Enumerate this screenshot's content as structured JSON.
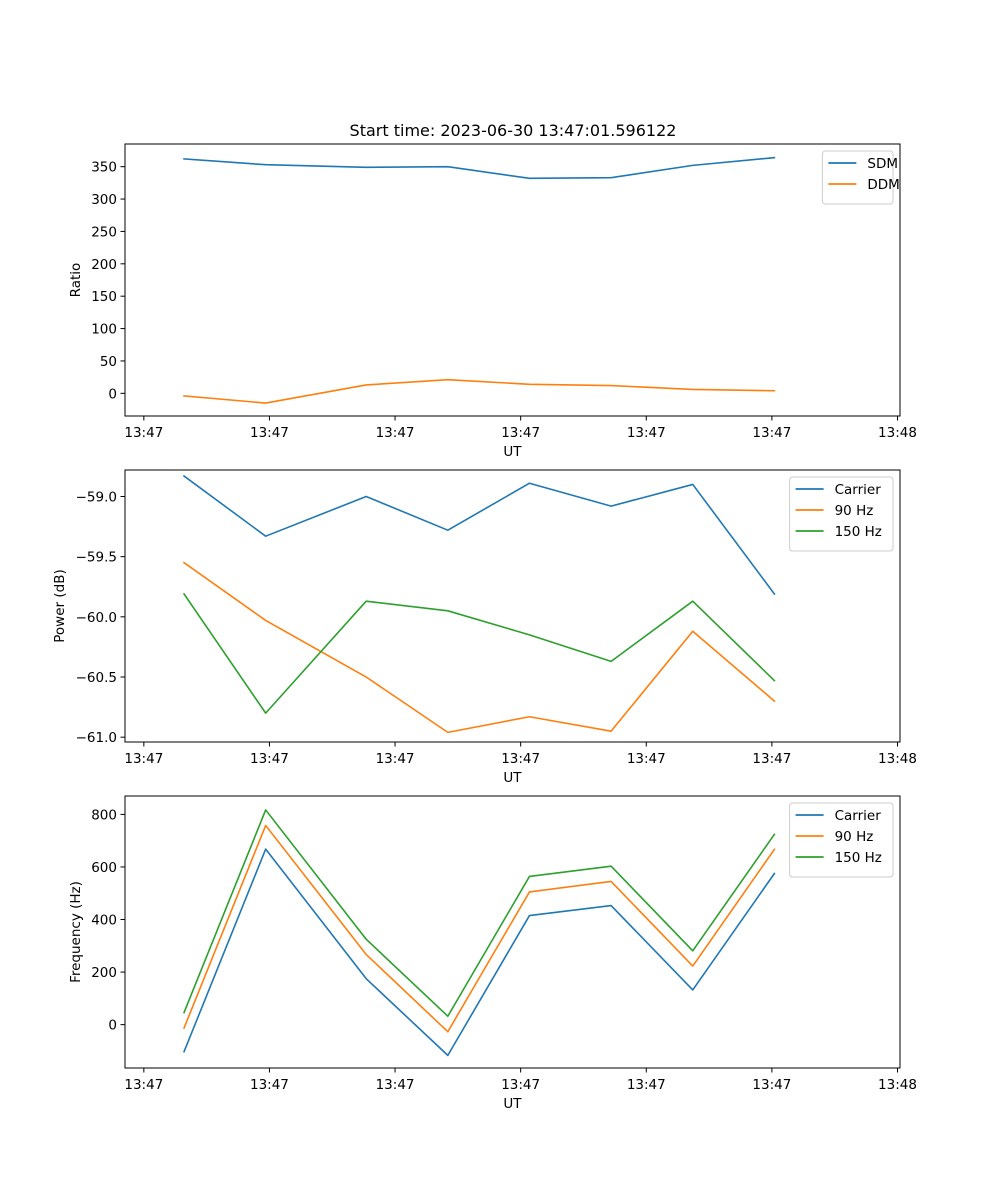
{
  "title": "Start time: 2023-06-30 13:47:01.596122",
  "chart_data": [
    {
      "type": "line",
      "xlabel": "UT",
      "ylabel": "Ratio",
      "x_tick_labels": [
        "13:47",
        "13:47",
        "13:47",
        "13:47",
        "13:47",
        "13:47",
        "13:48"
      ],
      "x_tick_positions": [
        0,
        1,
        2,
        3,
        4,
        5,
        6
      ],
      "xlim": [
        -0.15,
        6.02
      ],
      "x": [
        0.32,
        0.97,
        1.77,
        2.42,
        3.07,
        3.72,
        4.37,
        5.02
      ],
      "y_ticks": [
        0,
        50,
        100,
        150,
        200,
        250,
        300,
        350
      ],
      "ylim": [
        -35,
        385
      ],
      "legend_position": "upper right",
      "series": [
        {
          "name": "SDM",
          "color": "#1f77b4",
          "values": [
            362,
            353,
            349,
            350,
            332,
            333,
            352,
            364
          ]
        },
        {
          "name": "DDM",
          "color": "#ff7f0e",
          "values": [
            -4,
            -15,
            13,
            21,
            14,
            12,
            6,
            4
          ]
        }
      ]
    },
    {
      "type": "line",
      "xlabel": "UT",
      "ylabel": "Power (dB)",
      "x_tick_labels": [
        "13:47",
        "13:47",
        "13:47",
        "13:47",
        "13:47",
        "13:47",
        "13:48"
      ],
      "x_tick_positions": [
        0,
        1,
        2,
        3,
        4,
        5,
        6
      ],
      "xlim": [
        -0.15,
        6.02
      ],
      "x": [
        0.32,
        0.97,
        1.77,
        2.42,
        3.07,
        3.72,
        4.37,
        5.02
      ],
      "y_ticks": [
        -61.0,
        -60.5,
        -60.0,
        -59.5,
        -59.0
      ],
      "y_tick_labels": [
        "−61.0",
        "−60.5",
        "−60.0",
        "−59.5",
        "−59.0"
      ],
      "ylim": [
        -61.04,
        -58.78
      ],
      "legend_position": "upper right",
      "series": [
        {
          "name": "Carrier",
          "color": "#1f77b4",
          "values": [
            -58.83,
            -59.33,
            -59.0,
            -59.28,
            -58.89,
            -59.08,
            -58.9,
            -59.81
          ]
        },
        {
          "name": "90 Hz",
          "color": "#ff7f0e",
          "values": [
            -59.55,
            -60.03,
            -60.5,
            -60.96,
            -60.83,
            -60.95,
            -60.12,
            -60.7
          ]
        },
        {
          "name": "150 Hz",
          "color": "#2ca02c",
          "values": [
            -59.81,
            -60.8,
            -59.87,
            -59.95,
            -60.15,
            -60.37,
            -59.87,
            -60.53
          ]
        }
      ]
    },
    {
      "type": "line",
      "xlabel": "UT",
      "ylabel": "Frequency (Hz)",
      "x_tick_labels": [
        "13:47",
        "13:47",
        "13:47",
        "13:47",
        "13:47",
        "13:47",
        "13:48"
      ],
      "x_tick_positions": [
        0,
        1,
        2,
        3,
        4,
        5,
        6
      ],
      "xlim": [
        -0.15,
        6.02
      ],
      "x": [
        0.32,
        0.97,
        1.77,
        2.42,
        3.07,
        3.72,
        4.37,
        5.02
      ],
      "y_ticks": [
        0,
        200,
        400,
        600,
        800
      ],
      "ylim": [
        -165,
        870
      ],
      "legend_position": "upper right",
      "series": [
        {
          "name": "Carrier",
          "color": "#1f77b4",
          "values": [
            -103,
            668,
            175,
            -117,
            415,
            453,
            132,
            575
          ]
        },
        {
          "name": "90 Hz",
          "color": "#ff7f0e",
          "values": [
            -13,
            758,
            267,
            -27,
            505,
            545,
            223,
            667
          ]
        },
        {
          "name": "150 Hz",
          "color": "#2ca02c",
          "values": [
            46,
            817,
            325,
            32,
            564,
            603,
            281,
            724
          ]
        }
      ]
    }
  ]
}
